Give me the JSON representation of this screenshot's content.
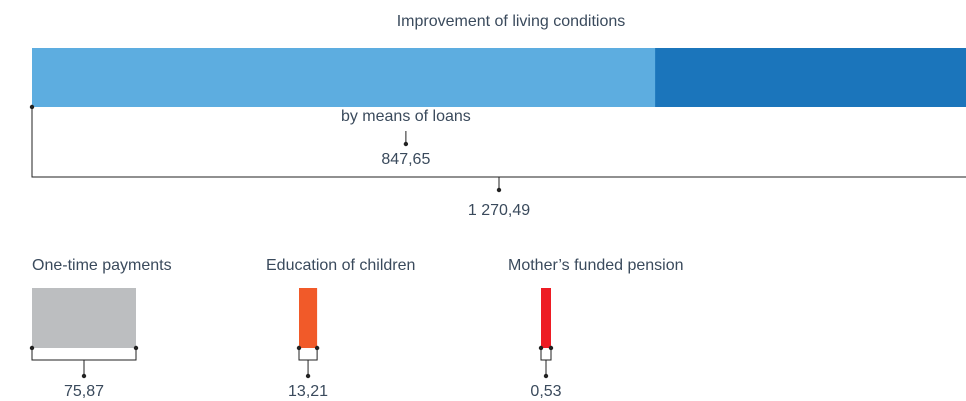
{
  "chart_data": {
    "type": "bar",
    "main": {
      "label": "Improvement of living conditions",
      "value": 1270.49,
      "value_label": "1 270,49",
      "color": "#1b75bb",
      "part": {
        "label": "by means of loans",
        "value": 847.65,
        "value_label": "847,65",
        "color": "#5dade0"
      }
    },
    "categories": [
      "One-time payments",
      "Education of children",
      "Mother’s funded pension"
    ],
    "values": [
      75.87,
      13.21,
      0.53
    ],
    "value_labels": [
      "75,87",
      "13,21",
      "0,53"
    ],
    "colors": [
      "#bcbec0",
      "#f15a29",
      "#ed1c24"
    ]
  }
}
